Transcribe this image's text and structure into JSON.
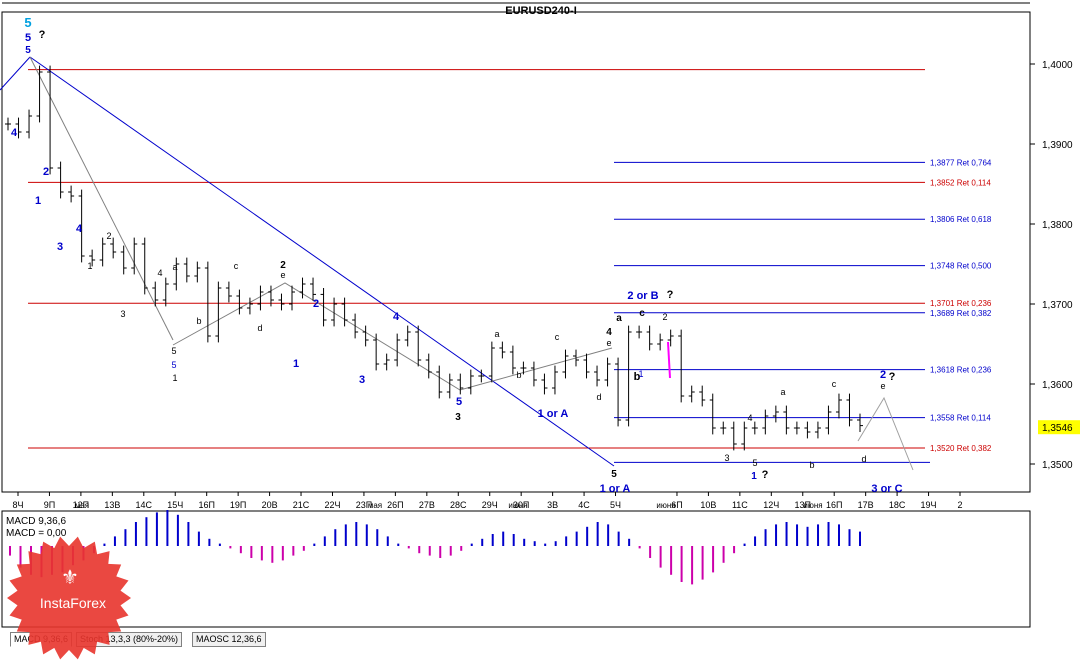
{
  "window": {
    "title": "EURUSD240-I"
  },
  "chart_data": {
    "type": "candlestick",
    "title": "EURUSD240-I",
    "ylim": [
      1.3465,
      1.4065
    ],
    "y_ticks": [
      "1,4000",
      "1,3900",
      "1,3800",
      "1,3700",
      "1,3600",
      "1,3500"
    ],
    "y_tick_values": [
      1.4,
      1.39,
      1.38,
      1.37,
      1.36,
      1.35
    ],
    "current_price": {
      "label": "1,3546",
      "value": 1.3546
    },
    "x_ticks": [
      "8Ч",
      "9П",
      "12П",
      "13В",
      "14С",
      "15Ч",
      "16П",
      "19П",
      "20В",
      "21С",
      "22Ч",
      "23П",
      "26П",
      "27В",
      "28С",
      "29Ч",
      "30П",
      "3В",
      "4С",
      "5Ч",
      "6П",
      "10В",
      "11С",
      "12Ч",
      "13П",
      "16П",
      "17В",
      "18С",
      "19Ч",
      "2"
    ],
    "x_ticks_month": [
      "мая",
      "мая",
      "июня",
      "июня",
      "июня"
    ],
    "levels": [
      {
        "label": "1,3877 Ret 0,764",
        "value": 1.3877,
        "color": "#0000cc"
      },
      {
        "label": "1,3852 Ret 0,114",
        "value": 1.3852,
        "color": "#cc0000"
      },
      {
        "label": "1,3806 Ret 0,618",
        "value": 1.3806,
        "color": "#0000cc"
      },
      {
        "label": "1,3748 Ret 0,500",
        "value": 1.3748,
        "color": "#0000cc"
      },
      {
        "label": "1,3701 Ret 0,236",
        "value": 1.3701,
        "color": "#cc0000"
      },
      {
        "label": "1,3689 Ret 0,382",
        "value": 1.3689,
        "color": "#0000cc"
      },
      {
        "label": "1,3618 Ret 0,236",
        "value": 1.3618,
        "color": "#0000cc"
      },
      {
        "label": "1,3558 Ret 0,114",
        "value": 1.3558,
        "color": "#0000cc"
      },
      {
        "label": "1,3520 Ret 0,382",
        "value": 1.352,
        "color": "#cc0000"
      }
    ],
    "red_line_top": 1.3993,
    "wave_labels": [
      {
        "text": "5",
        "color": "#00a0e0"
      },
      {
        "text": "5",
        "color": "#0000cc"
      },
      {
        "text": "?",
        "color": "#000000"
      },
      {
        "text": "5",
        "color": "#0000cc"
      },
      {
        "text": "4",
        "color": "#0000cc"
      },
      {
        "text": "2",
        "color": "#0000cc"
      },
      {
        "text": "1",
        "color": "#0000cc"
      },
      {
        "text": "4",
        "color": "#0000cc"
      },
      {
        "text": "3",
        "color": "#0000cc"
      },
      {
        "text": "1",
        "color": "#000000"
      },
      {
        "text": "2",
        "color": "#000000"
      },
      {
        "text": "3",
        "color": "#000000"
      },
      {
        "text": "4",
        "color": "#000000"
      },
      {
        "text": "5",
        "color": "#000000"
      },
      {
        "text": "5",
        "color": "#0000cc"
      },
      {
        "text": "1",
        "color": "#000000"
      },
      {
        "text": "a",
        "color": "#000000"
      },
      {
        "text": "b",
        "color": "#000000"
      },
      {
        "text": "c",
        "color": "#000000"
      },
      {
        "text": "d",
        "color": "#000000"
      },
      {
        "text": "2",
        "color": "#000000"
      },
      {
        "text": "e",
        "color": "#000000"
      },
      {
        "text": "2",
        "color": "#0000cc"
      },
      {
        "text": "1",
        "color": "#0000cc"
      },
      {
        "text": "4",
        "color": "#0000cc"
      },
      {
        "text": "3",
        "color": "#0000cc"
      },
      {
        "text": "5",
        "color": "#0000cc"
      },
      {
        "text": "3",
        "color": "#000000"
      },
      {
        "text": "a",
        "color": "#000000"
      },
      {
        "text": "b",
        "color": "#000000"
      },
      {
        "text": "c",
        "color": "#000000"
      },
      {
        "text": "d",
        "color": "#000000"
      },
      {
        "text": "e",
        "color": "#000000"
      },
      {
        "text": "1 or A",
        "color": "#0000cc"
      },
      {
        "text": "4",
        "color": "#000000"
      },
      {
        "text": "5",
        "color": "#000000"
      },
      {
        "text": "1 or A",
        "color": "#0000cc"
      },
      {
        "text": "2 or B",
        "color": "#0000cc"
      },
      {
        "text": "?",
        "color": "#000000"
      },
      {
        "text": "a",
        "color": "#000000"
      },
      {
        "text": "b",
        "color": "#000000"
      },
      {
        "text": "c",
        "color": "#000000"
      },
      {
        "text": "1",
        "color": "#0000cc"
      },
      {
        "text": "2",
        "color": "#000000"
      },
      {
        "text": "3",
        "color": "#000000"
      },
      {
        "text": "4",
        "color": "#000000"
      },
      {
        "text": "5",
        "color": "#000000"
      },
      {
        "text": "1",
        "color": "#0000cc"
      },
      {
        "text": "?",
        "color": "#000000"
      },
      {
        "text": "a",
        "color": "#000000"
      },
      {
        "text": "b",
        "color": "#000000"
      },
      {
        "text": "c",
        "color": "#000000"
      },
      {
        "text": "d",
        "color": "#000000"
      },
      {
        "text": "2",
        "color": "#0000cc"
      },
      {
        "text": "e",
        "color": "#000000"
      },
      {
        "text": "?",
        "color": "#000000"
      },
      {
        "text": "3 or C",
        "color": "#0000cc"
      }
    ],
    "price_path": [
      1.3925,
      1.3915,
      1.3935,
      1.399,
      1.387,
      1.384,
      1.3835,
      1.376,
      1.3755,
      1.3775,
      1.3765,
      1.3745,
      1.3775,
      1.372,
      1.3705,
      1.3725,
      1.375,
      1.3735,
      1.3745,
      1.366,
      1.372,
      1.371,
      1.3695,
      1.37,
      1.3715,
      1.3705,
      1.37,
      1.3715,
      1.3725,
      1.3712,
      1.368,
      1.37,
      1.368,
      1.3665,
      1.3655,
      1.3625,
      1.363,
      1.3655,
      1.3665,
      1.363,
      1.3615,
      1.359,
      1.3605,
      1.3595,
      1.361,
      1.361,
      1.3645,
      1.364,
      1.362,
      1.362,
      1.3605,
      1.3595,
      1.3615,
      1.3635,
      1.363,
      1.3615,
      1.3605,
      1.3625,
      1.3555,
      1.3665,
      1.3665,
      1.365,
      1.3655,
      1.366,
      1.3585,
      1.359,
      1.358,
      1.3545,
      1.3545,
      1.3525,
      1.3545,
      1.3545,
      1.356,
      1.3565,
      1.3545,
      1.3545,
      1.354,
      1.3545,
      1.3565,
      1.358,
      1.3555,
      1.3548
    ],
    "indicator": {
      "name": "MACD 9,36,6",
      "lines": [
        "MACD 9,36,6",
        "MACD = 0,00"
      ],
      "histogram": [
        -0.2,
        -0.45,
        -0.6,
        -0.65,
        -0.6,
        -0.55,
        -0.4,
        -0.3,
        -0.15,
        0.05,
        0.2,
        0.35,
        0.5,
        0.6,
        0.7,
        0.75,
        0.65,
        0.5,
        0.3,
        0.15,
        0.05,
        -0.05,
        -0.15,
        -0.25,
        -0.3,
        -0.35,
        -0.3,
        -0.2,
        -0.1,
        0.05,
        0.2,
        0.35,
        0.45,
        0.5,
        0.45,
        0.35,
        0.2,
        0.05,
        -0.05,
        -0.15,
        -0.2,
        -0.25,
        -0.2,
        -0.1,
        0.05,
        0.15,
        0.25,
        0.3,
        0.25,
        0.15,
        0.1,
        0.05,
        0.1,
        0.2,
        0.3,
        0.4,
        0.5,
        0.45,
        0.3,
        0.15,
        -0.05,
        -0.25,
        -0.45,
        -0.6,
        -0.75,
        -0.8,
        -0.7,
        -0.55,
        -0.35,
        -0.15,
        0.05,
        0.2,
        0.35,
        0.45,
        0.5,
        0.45,
        0.4,
        0.45,
        0.5,
        0.45,
        0.35,
        0.3
      ]
    }
  },
  "tabs": [
    {
      "label": "MACD 9,36,6"
    },
    {
      "label": "Stoch 13,3,3 (80%-20%)"
    },
    {
      "label": "MAOSC 12,36,6"
    }
  ],
  "brand": {
    "name": "InstaForex",
    "color": "#e8342c"
  }
}
